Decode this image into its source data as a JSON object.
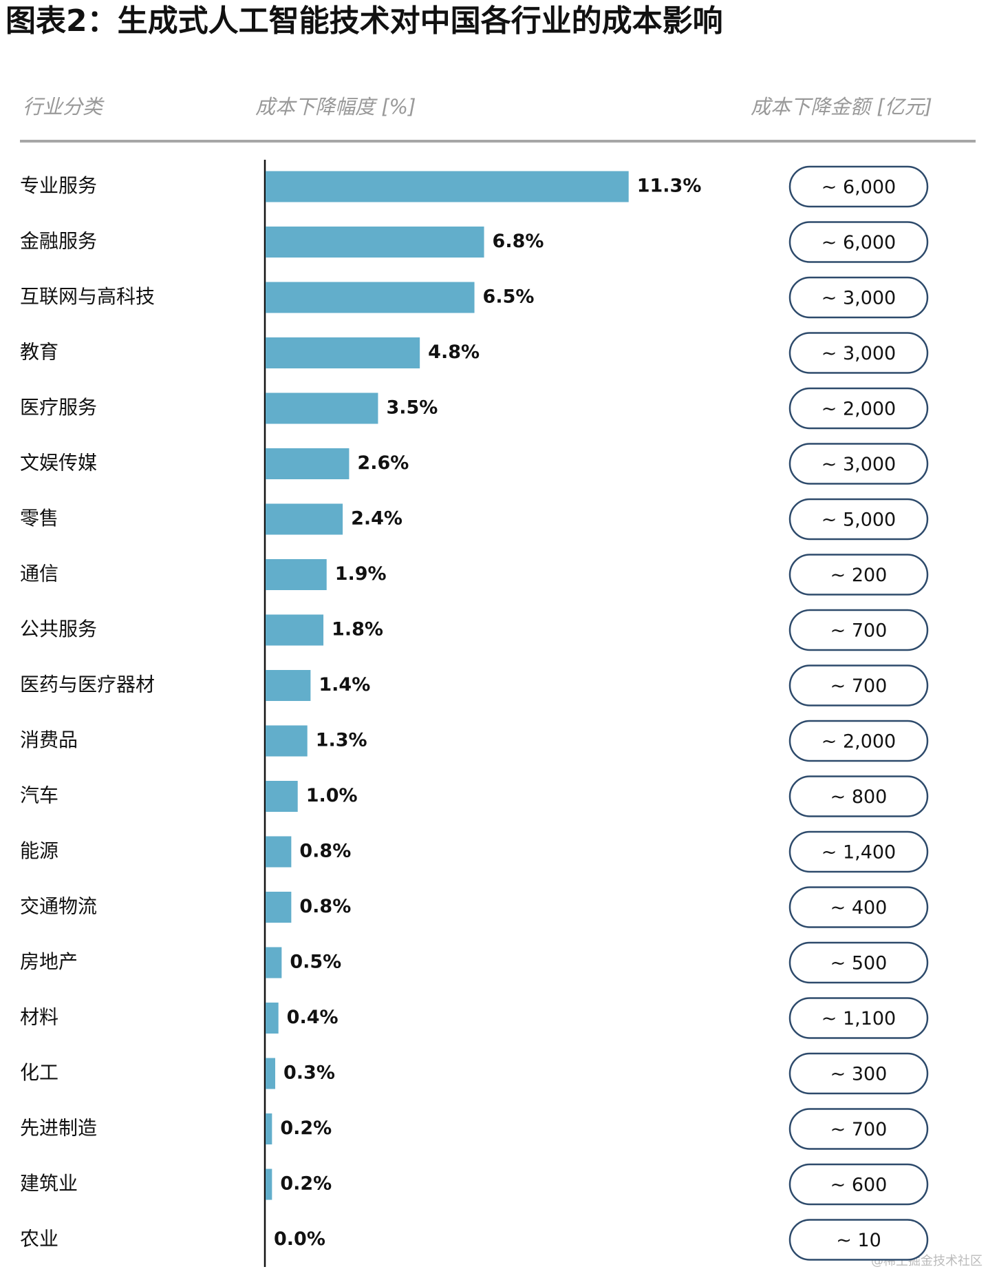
{
  "chart_data": {
    "type": "bar",
    "orientation": "horizontal",
    "title": "图表2：生成式人工智能技术对中国各行业的成本影响",
    "headers": [
      "行业分类",
      "成本下降幅度 [%]",
      "成本下降金额 [亿元]"
    ],
    "categories": [
      "专业服务",
      "金融服务",
      "互联网与高科技",
      "教育",
      "医疗服务",
      "文娱传媒",
      "零售",
      "通信",
      "公共服务",
      "医药与医疗器材",
      "消费品",
      "汽车",
      "能源",
      "交通物流",
      "房地产",
      "材料",
      "化工",
      "先进制造",
      "建筑业",
      "农业"
    ],
    "values": [
      11.3,
      6.8,
      6.5,
      4.8,
      3.5,
      2.6,
      2.4,
      1.9,
      1.8,
      1.4,
      1.3,
      1.0,
      0.8,
      0.8,
      0.5,
      0.4,
      0.3,
      0.2,
      0.2,
      0.0
    ],
    "value_labels": [
      "11.3%",
      "6.8%",
      "6.5%",
      "4.8%",
      "3.5%",
      "2.6%",
      "2.4%",
      "1.9%",
      "1.8%",
      "1.4%",
      "1.3%",
      "1.0%",
      "0.8%",
      "0.8%",
      "0.5%",
      "0.4%",
      "0.3%",
      "0.2%",
      "0.2%",
      "0.0%"
    ],
    "amounts": [
      "~ 6,000",
      "~ 6,000",
      "~ 3,000",
      "~ 3,000",
      "~ 2,000",
      "~ 3,000",
      "~ 5,000",
      "~ 200",
      "~ 700",
      "~ 700",
      "~ 2,000",
      "~ 800",
      "~ 1,400",
      "~ 400",
      "~ 500",
      "~ 1,100",
      "~ 300",
      "~ 700",
      "~ 600",
      "~ 10"
    ],
    "color": "#62aecb",
    "watermark": "@稀土掘金技术社区"
  }
}
